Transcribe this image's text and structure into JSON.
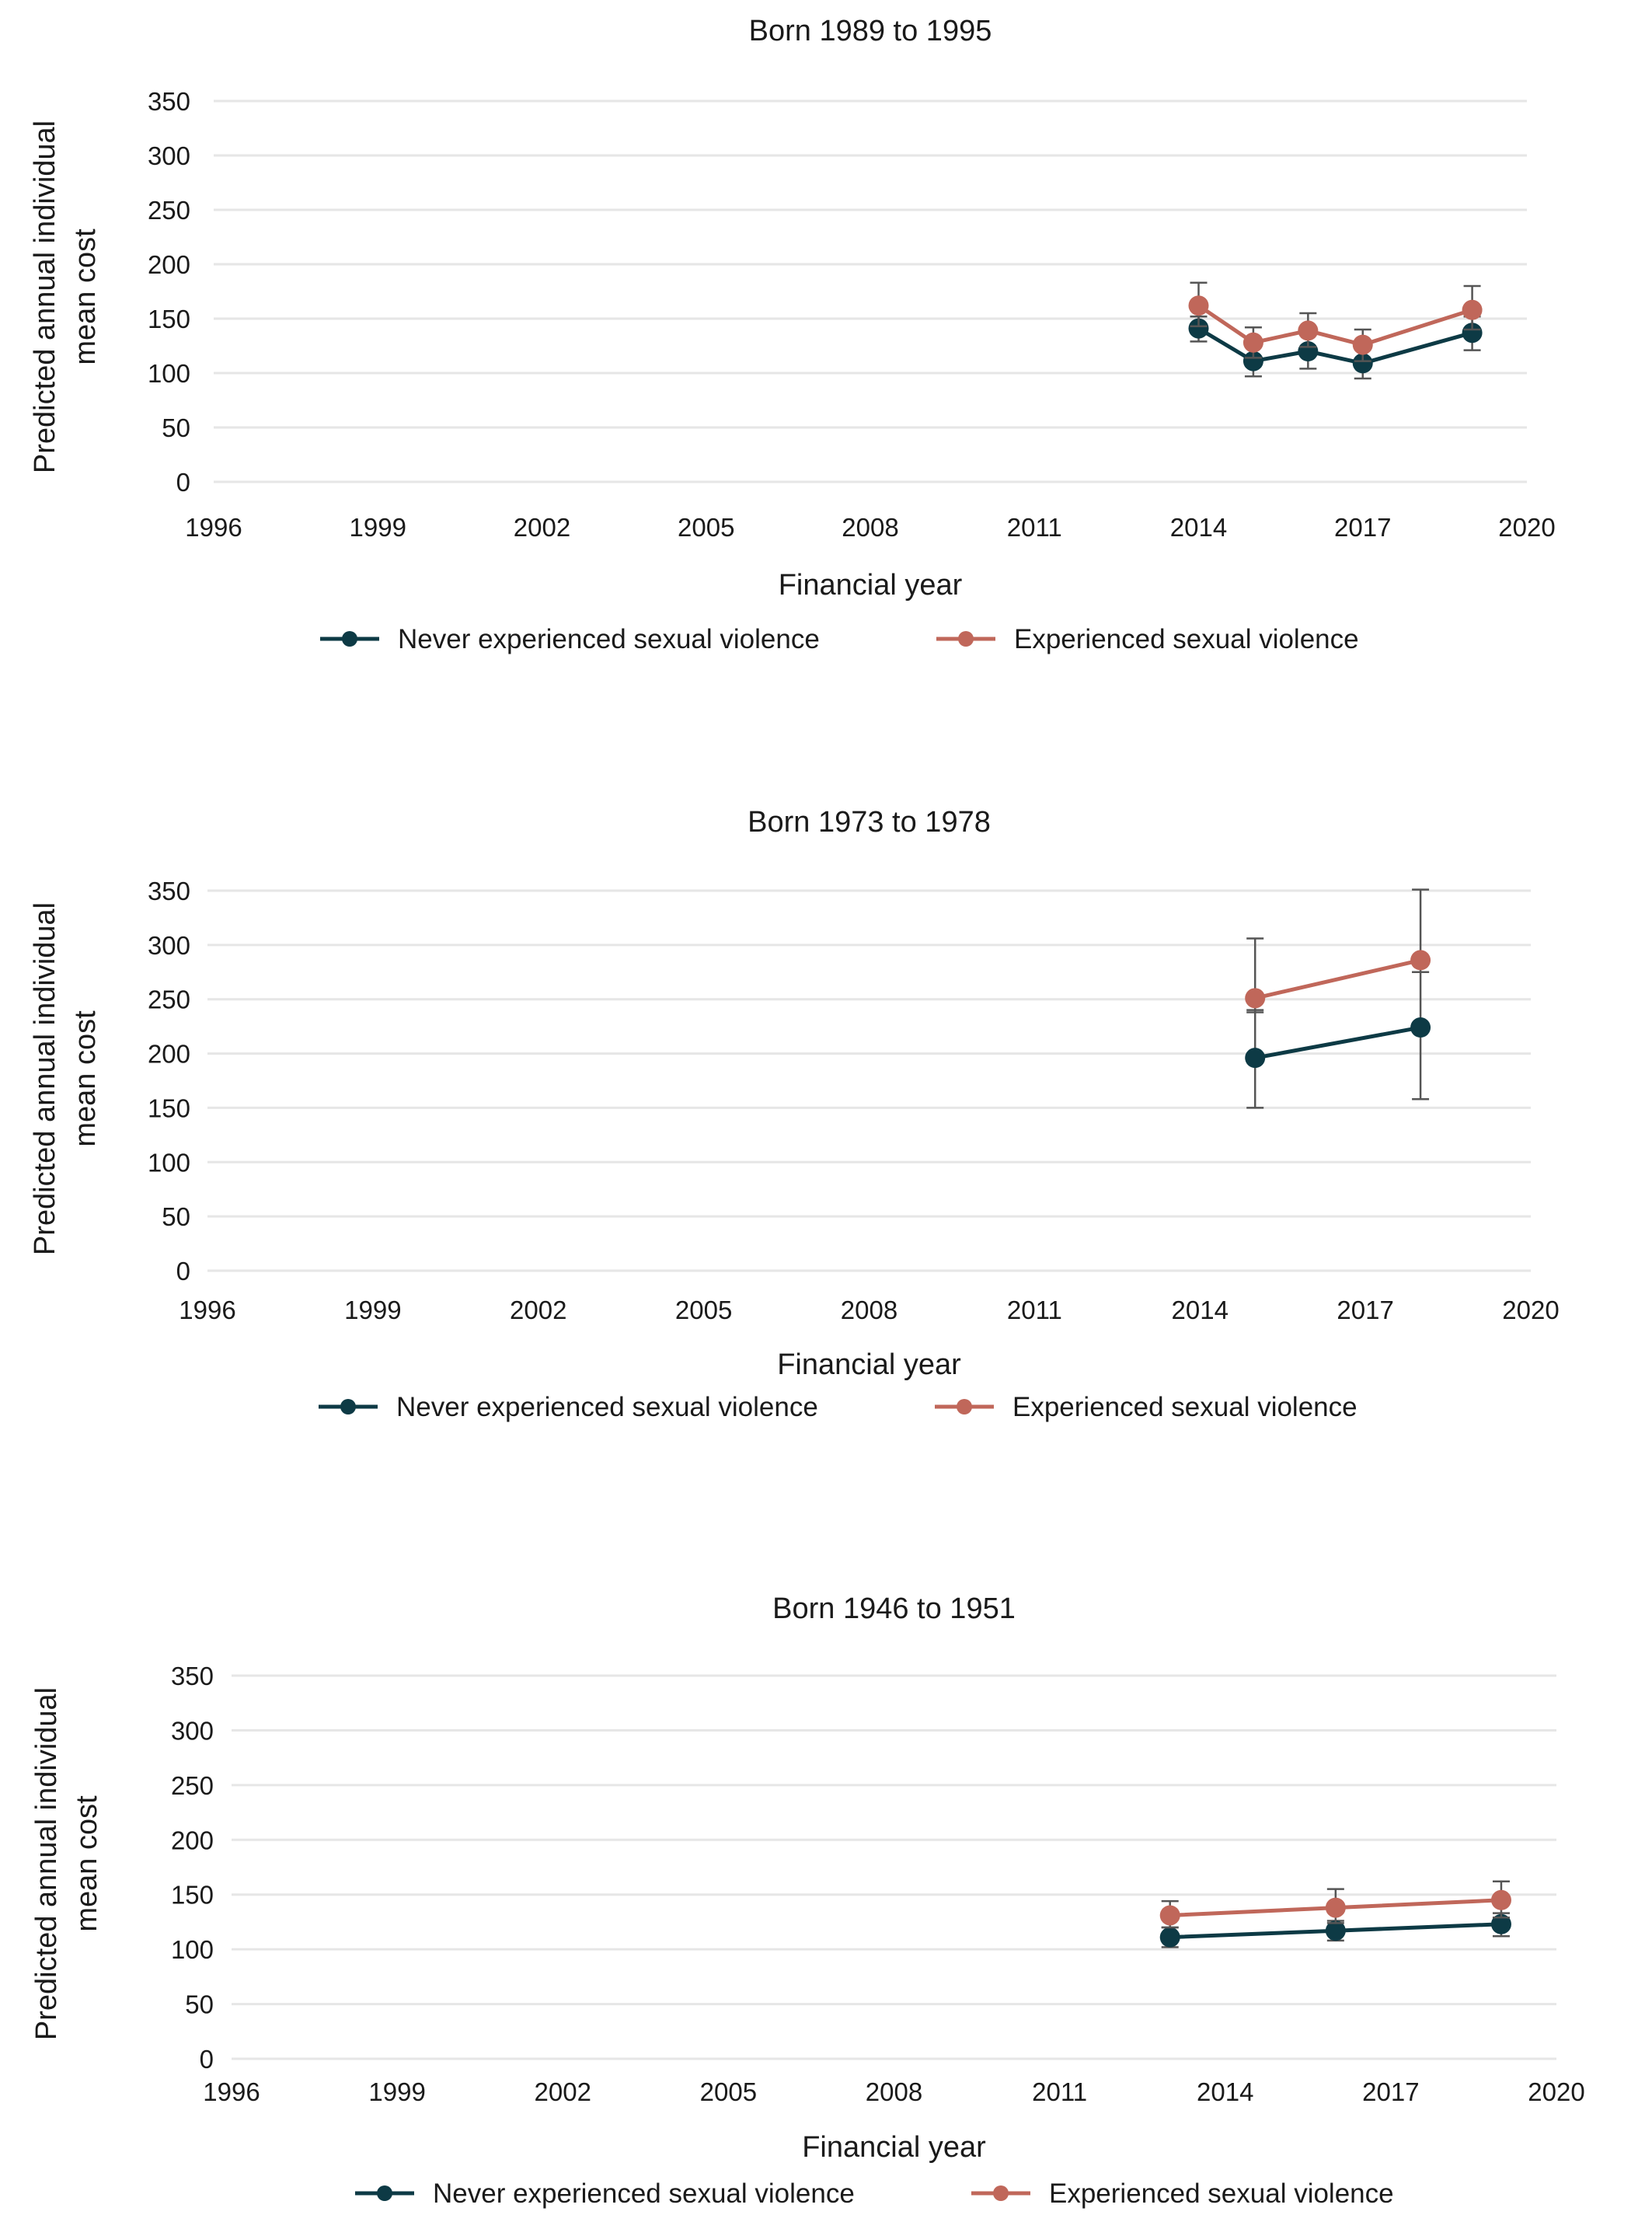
{
  "colors": {
    "never": "#0d3a45",
    "experienced": "#c0675a",
    "grid": "#e6e6e6",
    "error_bar": "#555555"
  },
  "chart_data": [
    {
      "type": "line",
      "title": "Born 1989 to 1995",
      "xlabel": "Financial year",
      "ylabel": "Predicted annual individual mean cost",
      "x_ticks": [
        1996,
        1999,
        2002,
        2005,
        2008,
        2011,
        2014,
        2017,
        2020
      ],
      "y_ticks": [
        0,
        50,
        100,
        150,
        200,
        250,
        300,
        350
      ],
      "xlim": [
        1996,
        2020
      ],
      "ylim": [
        0,
        350
      ],
      "grid": "horizontal",
      "legend": "bottom",
      "series": [
        {
          "name": "Never experienced sexual violence",
          "color_key": "never",
          "x": [
            2014,
            2015,
            2016,
            2017,
            2019
          ],
          "y": [
            141,
            111,
            120,
            109,
            137
          ],
          "lower": [
            129,
            97,
            104,
            95,
            121
          ],
          "upper": [
            152,
            124,
            135,
            124,
            152
          ]
        },
        {
          "name": "Experienced sexual violence",
          "color_key": "experienced",
          "x": [
            2014,
            2015,
            2016,
            2017,
            2019
          ],
          "y": [
            162,
            128,
            139,
            126,
            158
          ],
          "lower": [
            143,
            114,
            124,
            111,
            140
          ],
          "upper": [
            183,
            142,
            155,
            140,
            180
          ]
        }
      ]
    },
    {
      "type": "line",
      "title": "Born 1973 to 1978",
      "xlabel": "Financial year",
      "ylabel": "Predicted annual individual mean cost",
      "x_ticks": [
        1996,
        1999,
        2002,
        2005,
        2008,
        2011,
        2014,
        2017,
        2020
      ],
      "y_ticks": [
        0,
        50,
        100,
        150,
        200,
        250,
        300,
        350
      ],
      "xlim": [
        1996,
        2020
      ],
      "ylim": [
        0,
        350
      ],
      "grid": "horizontal",
      "legend": "bottom",
      "series": [
        {
          "name": "Never experienced sexual violence",
          "color_key": "never",
          "x": [
            2015,
            2018
          ],
          "y": [
            196,
            224
          ],
          "lower": [
            150,
            158
          ],
          "upper": [
            240,
            275
          ]
        },
        {
          "name": "Experienced sexual violence",
          "color_key": "experienced",
          "x": [
            2015,
            2018
          ],
          "y": [
            251,
            286
          ],
          "lower": [
            238,
            275
          ],
          "upper": [
            306,
            351
          ]
        }
      ]
    },
    {
      "type": "line",
      "title": "Born 1946 to 1951",
      "xlabel": "Financial year",
      "ylabel": "Predicted annual individual mean cost",
      "x_ticks": [
        1996,
        1999,
        2002,
        2005,
        2008,
        2011,
        2014,
        2017,
        2020
      ],
      "y_ticks": [
        0,
        50,
        100,
        150,
        200,
        250,
        300,
        350
      ],
      "xlim": [
        1996,
        2020
      ],
      "ylim": [
        0,
        350
      ],
      "grid": "horizontal",
      "legend": "bottom",
      "series": [
        {
          "name": "Never experienced sexual violence",
          "color_key": "never",
          "x": [
            2013,
            2016,
            2019
          ],
          "y": [
            111,
            117,
            123
          ],
          "lower": [
            102,
            108,
            112
          ],
          "upper": [
            120,
            126,
            133
          ]
        },
        {
          "name": "Experienced sexual violence",
          "color_key": "experienced",
          "x": [
            2013,
            2016,
            2019
          ],
          "y": [
            131,
            138,
            145
          ],
          "lower": [
            120,
            124,
            129
          ],
          "upper": [
            144,
            155,
            162
          ]
        }
      ]
    }
  ]
}
